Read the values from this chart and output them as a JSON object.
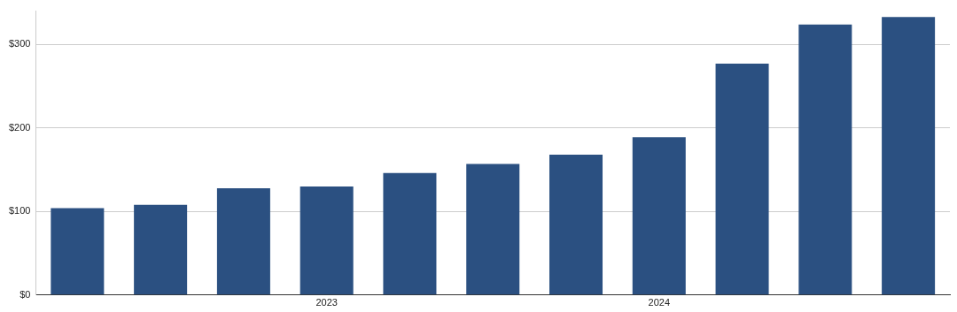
{
  "chart_data": {
    "type": "bar",
    "categories": [
      null,
      null,
      null,
      "2023",
      null,
      null,
      null,
      "2024",
      null,
      null,
      null
    ],
    "values": [
      104,
      108,
      128,
      130,
      146,
      157,
      168,
      189,
      277,
      324,
      333
    ],
    "color": "#2b5081",
    "ylim": [
      0,
      340
    ],
    "yticks": [
      {
        "value": 0,
        "label": "$0"
      },
      {
        "value": 100,
        "label": "$100"
      },
      {
        "value": 200,
        "label": "$200"
      },
      {
        "value": 300,
        "label": "$300"
      }
    ],
    "grid": "y"
  }
}
